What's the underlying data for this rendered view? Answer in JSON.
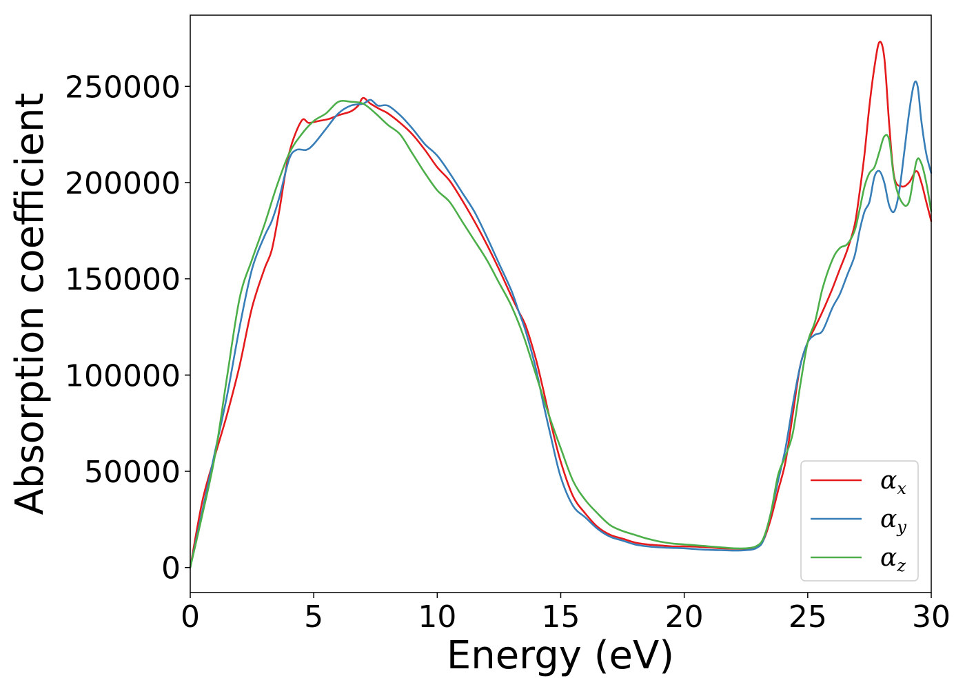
{
  "chart_data": {
    "type": "line",
    "xlabel": "Energy (eV)",
    "ylabel": "Absorption coefficient",
    "xlim": [
      0,
      30
    ],
    "ylim": [
      -13000,
      287000
    ],
    "xticks": [
      0,
      5,
      10,
      15,
      20,
      25,
      30
    ],
    "xtick_labels": [
      "0",
      "5",
      "10",
      "15",
      "20",
      "25",
      "30"
    ],
    "yticks": [
      0,
      50000,
      100000,
      150000,
      200000,
      250000
    ],
    "ytick_labels": [
      "0",
      "50000",
      "100000",
      "150000",
      "200000",
      "250000"
    ],
    "grid": false,
    "legend_position": "bottom-right",
    "series": [
      {
        "name": "α_x",
        "symbol": "α",
        "sub": "x",
        "color": "#e41a1c",
        "x": [
          0,
          0.5,
          1,
          1.5,
          2,
          2.5,
          3,
          3.3,
          3.6,
          4,
          4.5,
          4.8,
          5.2,
          5.6,
          6,
          6.5,
          6.8,
          7,
          7.3,
          7.7,
          8,
          8.5,
          9,
          9.5,
          10,
          10.5,
          11,
          11.5,
          12,
          12.5,
          13,
          13.3,
          13.6,
          14,
          14.3,
          14.6,
          15,
          15.5,
          16,
          16.5,
          17,
          17.5,
          18,
          18.5,
          19,
          19.5,
          20,
          20.5,
          21,
          21.5,
          22,
          22.5,
          22.9,
          23.2,
          23.5,
          23.8,
          24.1,
          24.4,
          24.7,
          25,
          25.3,
          25.6,
          26,
          26.3,
          26.6,
          26.9,
          27.1,
          27.3,
          27.5,
          27.7,
          27.9,
          28.1,
          28.3,
          28.5,
          28.8,
          29.1,
          29.4,
          29.6,
          29.8,
          30
        ],
        "y": [
          0,
          35000,
          58000,
          80000,
          105000,
          135000,
          155000,
          165000,
          185000,
          215000,
          232000,
          231000,
          232000,
          233000,
          235000,
          237000,
          240000,
          244000,
          241000,
          238000,
          236000,
          231000,
          225000,
          217000,
          208000,
          201000,
          191000,
          180000,
          168000,
          155000,
          141000,
          133000,
          125000,
          108000,
          92000,
          75000,
          55000,
          37000,
          28000,
          21000,
          17000,
          15000,
          13000,
          12000,
          11500,
          11000,
          11000,
          10800,
          10500,
          10000,
          9800,
          9800,
          10500,
          14000,
          25000,
          40000,
          55000,
          80000,
          105000,
          117000,
          125000,
          133000,
          145000,
          155000,
          165000,
          178000,
          195000,
          215000,
          240000,
          260000,
          273000,
          265000,
          230000,
          203000,
          198000,
          200000,
          206000,
          200000,
          190000,
          180000
        ]
      },
      {
        "name": "α_y",
        "symbol": "α",
        "sub": "y",
        "color": "#377eb8",
        "x": [
          0,
          0.5,
          1,
          1.5,
          2,
          2.5,
          3,
          3.3,
          3.6,
          4,
          4.3,
          4.7,
          5,
          5.5,
          6,
          6.5,
          7,
          7.3,
          7.6,
          8,
          8.5,
          9,
          9.5,
          10,
          10.5,
          11,
          11.5,
          12,
          12.5,
          13,
          13.3,
          13.6,
          14,
          14.3,
          14.6,
          15,
          15.5,
          16,
          16.5,
          17,
          17.5,
          18,
          18.5,
          19,
          19.5,
          20,
          20.5,
          21,
          21.5,
          22,
          22.5,
          22.9,
          23.2,
          23.5,
          23.8,
          24.1,
          24.4,
          24.7,
          25,
          25.3,
          25.6,
          26,
          26.3,
          26.6,
          26.9,
          27.1,
          27.3,
          27.5,
          27.7,
          27.9,
          28.1,
          28.3,
          28.5,
          28.7,
          28.9,
          29.1,
          29.3,
          29.45,
          29.6,
          29.8,
          30
        ],
        "y": [
          0,
          30000,
          60000,
          90000,
          125000,
          155000,
          172000,
          180000,
          192000,
          212000,
          217000,
          217000,
          220000,
          228000,
          236000,
          240000,
          241000,
          243000,
          240000,
          240000,
          235000,
          228000,
          220000,
          214000,
          205000,
          195000,
          185000,
          172000,
          158000,
          144000,
          133000,
          122000,
          103000,
          85000,
          68000,
          47000,
          32000,
          26000,
          20000,
          16000,
          14000,
          12000,
          11000,
          10500,
          10200,
          10000,
          9500,
          9200,
          9000,
          8800,
          9000,
          10000,
          14000,
          28000,
          45000,
          62000,
          85000,
          105000,
          117000,
          121000,
          123000,
          135000,
          142000,
          152000,
          162000,
          175000,
          185000,
          190000,
          203000,
          206000,
          200000,
          188000,
          185000,
          195000,
          215000,
          236000,
          251000,
          250000,
          232000,
          215000,
          205000
        ]
      },
      {
        "name": "α_z",
        "symbol": "α",
        "sub": "z",
        "color": "#4daf4a",
        "x": [
          0,
          0.5,
          1,
          1.5,
          2,
          2.5,
          3,
          3.5,
          4,
          4.5,
          5,
          5.5,
          6,
          6.5,
          7,
          7.5,
          8,
          8.5,
          9,
          9.5,
          10,
          10.5,
          11,
          11.5,
          12,
          12.5,
          13,
          13.5,
          14,
          14.5,
          15,
          15.5,
          16,
          16.5,
          17,
          17.5,
          18,
          18.5,
          19,
          19.5,
          20,
          20.5,
          21,
          21.5,
          22,
          22.5,
          22.9,
          23.2,
          23.5,
          23.8,
          24.1,
          24.4,
          24.7,
          25,
          25.3,
          25.6,
          26,
          26.3,
          26.6,
          26.9,
          27.1,
          27.3,
          27.5,
          27.7,
          27.9,
          28.1,
          28.3,
          28.5,
          28.8,
          29.1,
          29.4,
          29.6,
          29.8,
          30
        ],
        "y": [
          0,
          28000,
          58000,
          100000,
          140000,
          160000,
          178000,
          198000,
          215000,
          225000,
          232000,
          236000,
          242000,
          242000,
          241000,
          236000,
          230000,
          225000,
          215000,
          205000,
          196000,
          190000,
          180000,
          170000,
          160000,
          148000,
          136000,
          120000,
          100000,
          80000,
          62000,
          45000,
          35000,
          28000,
          22000,
          19000,
          17000,
          15000,
          13500,
          12500,
          12000,
          11500,
          11000,
          10500,
          10000,
          10000,
          11000,
          15000,
          28000,
          48000,
          58000,
          70000,
          95000,
          117000,
          128000,
          145000,
          160000,
          166000,
          168000,
          175000,
          186000,
          198000,
          205000,
          208000,
          216000,
          224000,
          222000,
          202000,
          190000,
          190000,
          211000,
          210000,
          200000,
          185000
        ]
      }
    ]
  }
}
